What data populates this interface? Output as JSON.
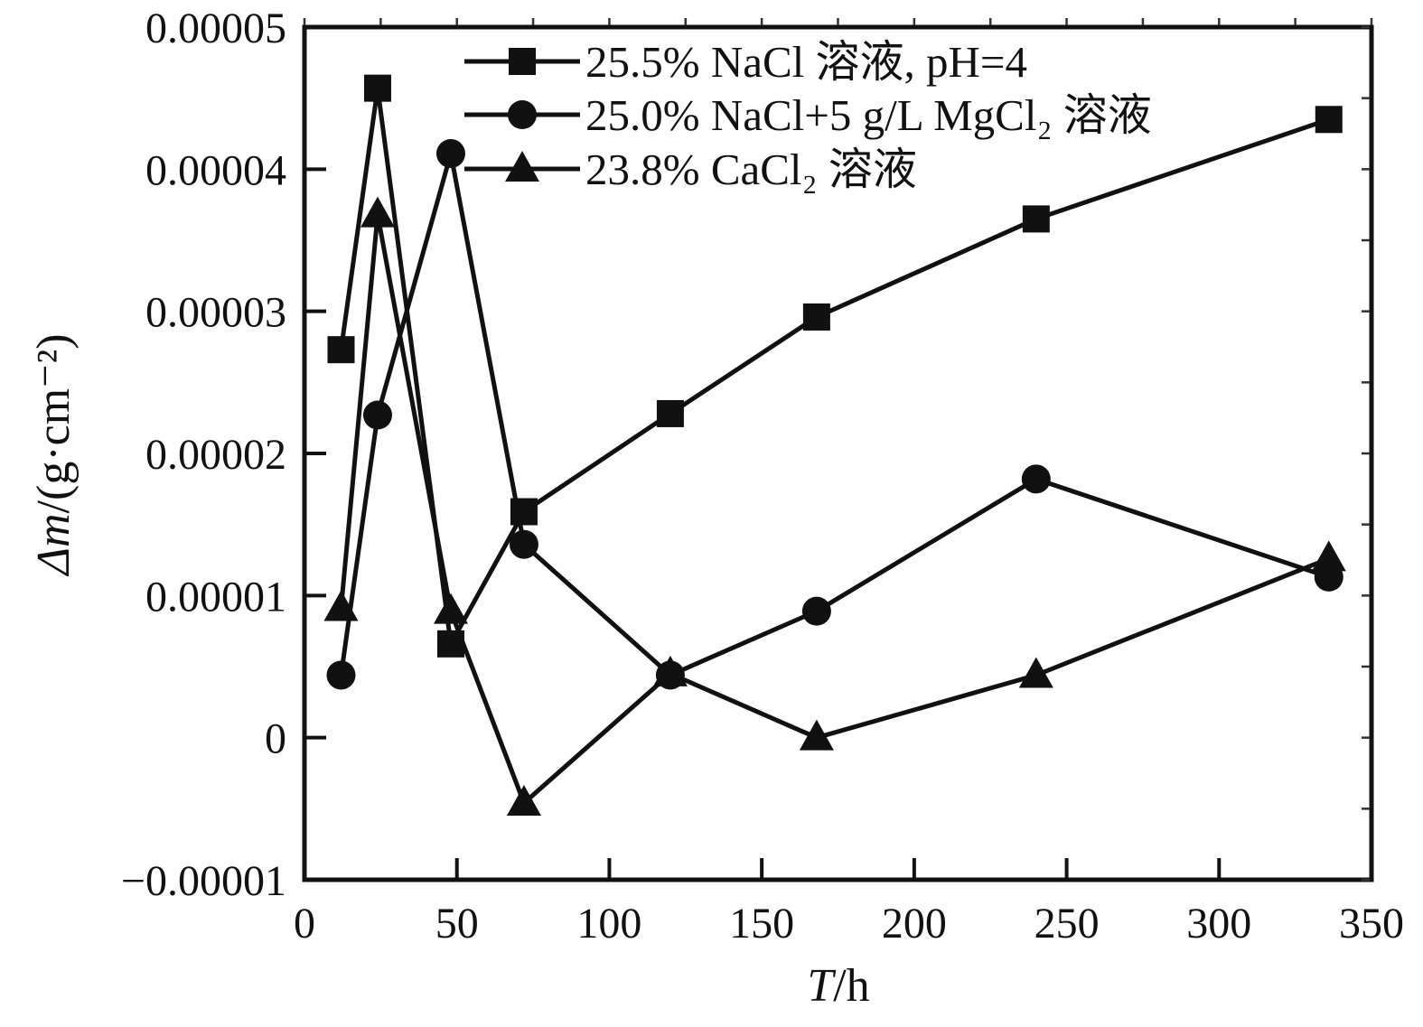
{
  "figure": {
    "background": "#ffffff",
    "ink_color": "#111111",
    "minor_tick_color": "#333333"
  },
  "chart_data": {
    "type": "line",
    "title": "",
    "xlabel": "T/h",
    "xlabel_parts": {
      "italic": "T",
      "rest": "/h"
    },
    "ylabel": "Δm/(g·cm⁻²)",
    "ylabel_parts": {
      "italic": "Δm",
      "rest": "/(g·cm⁻²)"
    },
    "xlim": [
      0,
      350
    ],
    "ylim": [
      -1e-05,
      5e-05
    ],
    "x_ticks": [
      0,
      50,
      100,
      150,
      200,
      250,
      300,
      350
    ],
    "x_tick_labels": [
      "0",
      "50",
      "100",
      "150",
      "200",
      "250",
      "300",
      "350"
    ],
    "y_ticks": [
      -1e-05,
      0,
      1e-05,
      2e-05,
      3e-05,
      4e-05,
      5e-05
    ],
    "y_tick_labels": [
      "−0.00001",
      "0",
      "0.00001",
      "0.00002",
      "0.00003",
      "0.00004",
      "0.00005"
    ],
    "top_minor_tick_step": 25,
    "right_minor_tick_step": 5e-06,
    "grid": false,
    "legend_position": "inside-top",
    "x": [
      12,
      24,
      48,
      72,
      120,
      168,
      240,
      336
    ],
    "series": [
      {
        "name": "25.5% NaCl 溶液, pH=4",
        "marker": "square",
        "values": [
          2.73e-05,
          4.57e-05,
          6.6e-06,
          1.59e-05,
          2.28e-05,
          2.96e-05,
          3.65e-05,
          4.35e-05
        ]
      },
      {
        "name": "25.0% NaCl+5 g/L MgCl₂ 溶液",
        "marker": "circle",
        "values": [
          4.4e-06,
          2.27e-05,
          4.11e-05,
          1.36e-05,
          4.4e-06,
          8.9e-06,
          1.82e-05,
          1.13e-05
        ]
      },
      {
        "name": "23.8% CaCl₂ 溶液",
        "marker": "triangle",
        "values": [
          9.1e-06,
          3.68e-05,
          8.9e-06,
          -4.6e-06,
          4.5e-06,
          0.0,
          4.4e-06,
          1.26e-05
        ]
      }
    ]
  }
}
